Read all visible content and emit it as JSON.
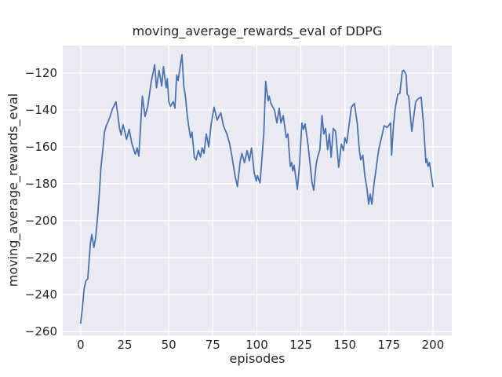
{
  "figure": {
    "background": "#ffffff"
  },
  "chart_data": {
    "type": "line",
    "title": "moving_average_rewards_eval of DDPG",
    "xlabel": "episodes",
    "ylabel": "moving_average_rewards_eval",
    "xlim": [
      -10.2,
      210.7
    ],
    "ylim": [
      -262.1,
      -105.1
    ],
    "x_ticks": [
      0,
      25,
      50,
      75,
      100,
      125,
      150,
      175,
      200
    ],
    "x_tick_labels": [
      "0",
      "25",
      "50",
      "75",
      "100",
      "125",
      "150",
      "175",
      "200"
    ],
    "y_ticks": [
      -120,
      -140,
      -160,
      -180,
      -200,
      -220,
      -240,
      -260
    ],
    "y_tick_labels": [
      "−120",
      "−140",
      "−160",
      "−180",
      "−200",
      "−220",
      "−240",
      "−260"
    ],
    "grid": true,
    "legend": false,
    "style": {
      "axes_background": "#EAEAF2",
      "grid_color": "#FFFFFF",
      "line_color": "#4C72B0",
      "text_color": "#262626",
      "line_width": 1.8,
      "grid_width": 1.3
    },
    "series": [
      {
        "name": "moving_average_rewards_eval",
        "points": [
          [
            0,
            -255.5
          ],
          [
            1,
            -247
          ],
          [
            2,
            -236.5
          ],
          [
            3,
            -232.5
          ],
          [
            4,
            -231.5
          ],
          [
            5.5,
            -212
          ],
          [
            6.3,
            -207.5
          ],
          [
            7.5,
            -214.5
          ],
          [
            8.5,
            -209
          ],
          [
            9.5,
            -199
          ],
          [
            10.5,
            -186
          ],
          [
            11.5,
            -171
          ],
          [
            12.5,
            -162
          ],
          [
            13.5,
            -152
          ],
          [
            14.5,
            -148.5
          ],
          [
            15.5,
            -146.5
          ],
          [
            16.5,
            -144
          ],
          [
            18,
            -139.5
          ],
          [
            20,
            -135.6
          ],
          [
            21,
            -142
          ],
          [
            22,
            -150
          ],
          [
            23,
            -153.5
          ],
          [
            24,
            -148
          ],
          [
            25,
            -151.5
          ],
          [
            26,
            -156
          ],
          [
            27.5,
            -150.5
          ],
          [
            29,
            -158
          ],
          [
            30,
            -161
          ],
          [
            31,
            -164
          ],
          [
            32,
            -160.5
          ],
          [
            33,
            -165
          ],
          [
            35,
            -132.5
          ],
          [
            36.5,
            -143.5
          ],
          [
            38,
            -138.5
          ],
          [
            40,
            -125
          ],
          [
            42,
            -115.5
          ],
          [
            43,
            -128
          ],
          [
            44.5,
            -118.5
          ],
          [
            46,
            -127
          ],
          [
            47,
            -116.5
          ],
          [
            48.5,
            -128
          ],
          [
            49.2,
            -123
          ],
          [
            50,
            -135.5
          ],
          [
            51,
            -138
          ],
          [
            52.5,
            -135.5
          ],
          [
            53.5,
            -139
          ],
          [
            54.5,
            -121
          ],
          [
            55.3,
            -124
          ],
          [
            57.5,
            -110
          ],
          [
            58.5,
            -127
          ],
          [
            59.5,
            -133
          ],
          [
            60.5,
            -143
          ],
          [
            61.5,
            -150
          ],
          [
            62.3,
            -155
          ],
          [
            63.2,
            -152
          ],
          [
            64.5,
            -165.5
          ],
          [
            65.5,
            -167
          ],
          [
            66.8,
            -162
          ],
          [
            68,
            -165.5
          ],
          [
            69,
            -160.5
          ],
          [
            70,
            -163.5
          ],
          [
            71.3,
            -153
          ],
          [
            72.7,
            -160
          ],
          [
            74,
            -148
          ],
          [
            75.7,
            -138.5
          ],
          [
            77.5,
            -145.5
          ],
          [
            79.5,
            -141.5
          ],
          [
            81,
            -148.5
          ],
          [
            83,
            -153
          ],
          [
            84.6,
            -158.5
          ],
          [
            86,
            -166
          ],
          [
            87.7,
            -176
          ],
          [
            89,
            -181.5
          ],
          [
            90.5,
            -168
          ],
          [
            91.5,
            -163.5
          ],
          [
            93,
            -168.5
          ],
          [
            94.5,
            -162
          ],
          [
            95.7,
            -167.5
          ],
          [
            97,
            -160.5
          ],
          [
            98.5,
            -174
          ],
          [
            99.7,
            -178.5
          ],
          [
            100.3,
            -175.5
          ],
          [
            101.8,
            -179.5
          ],
          [
            103,
            -165
          ],
          [
            104,
            -152
          ],
          [
            105,
            -124.5
          ],
          [
            106.4,
            -135
          ],
          [
            107,
            -132.5
          ],
          [
            108,
            -136.5
          ],
          [
            110,
            -140
          ],
          [
            111.4,
            -147
          ],
          [
            112.7,
            -139
          ],
          [
            113.7,
            -147
          ],
          [
            115,
            -143
          ],
          [
            116.7,
            -155
          ],
          [
            117.6,
            -153
          ],
          [
            119,
            -170.5
          ],
          [
            119.8,
            -168.5
          ],
          [
            120.4,
            -173
          ],
          [
            121.2,
            -170
          ],
          [
            123,
            -183
          ],
          [
            124.2,
            -170
          ],
          [
            125.6,
            -147
          ],
          [
            126.5,
            -150.5
          ],
          [
            127.4,
            -147.5
          ],
          [
            129,
            -158.5
          ],
          [
            131.4,
            -179.5
          ],
          [
            132.3,
            -183.5
          ],
          [
            133.6,
            -170
          ],
          [
            134.5,
            -165.5
          ],
          [
            135.8,
            -161.5
          ],
          [
            137,
            -143
          ],
          [
            138,
            -153
          ],
          [
            139,
            -150
          ],
          [
            140.2,
            -161.5
          ],
          [
            141.2,
            -153
          ],
          [
            142.2,
            -165.5
          ],
          [
            143.4,
            -150
          ],
          [
            144.7,
            -151.5
          ],
          [
            146.5,
            -171
          ],
          [
            148,
            -158.5
          ],
          [
            149.2,
            -162
          ],
          [
            150,
            -155
          ],
          [
            151,
            -158
          ],
          [
            153.7,
            -138.5
          ],
          [
            155.4,
            -136.5
          ],
          [
            157,
            -147
          ],
          [
            158.2,
            -161.5
          ],
          [
            159,
            -167
          ],
          [
            160.2,
            -164.5
          ],
          [
            161.3,
            -175.5
          ],
          [
            162.5,
            -182.5
          ],
          [
            163.5,
            -191
          ],
          [
            164.4,
            -185.5
          ],
          [
            165.3,
            -191
          ],
          [
            166.6,
            -179.5
          ],
          [
            168,
            -170
          ],
          [
            169.2,
            -161.5
          ],
          [
            171,
            -154
          ],
          [
            172.3,
            -148.5
          ],
          [
            174,
            -149.5
          ],
          [
            175.9,
            -147
          ],
          [
            176.5,
            -164.5
          ],
          [
            177.7,
            -147
          ],
          [
            178.6,
            -139
          ],
          [
            180,
            -131.5
          ],
          [
            181.2,
            -131
          ],
          [
            182.6,
            -119
          ],
          [
            183.5,
            -118.5
          ],
          [
            184.8,
            -121
          ],
          [
            185.4,
            -131.5
          ],
          [
            186.2,
            -132.5
          ],
          [
            188,
            -151.5
          ],
          [
            190.2,
            -135.5
          ],
          [
            191.5,
            -134
          ],
          [
            193.3,
            -133
          ],
          [
            194.6,
            -147
          ],
          [
            196,
            -168.5
          ],
          [
            196.5,
            -166.5
          ],
          [
            197.2,
            -170.5
          ],
          [
            198,
            -168.5
          ],
          [
            200,
            -181.5
          ]
        ]
      }
    ]
  }
}
